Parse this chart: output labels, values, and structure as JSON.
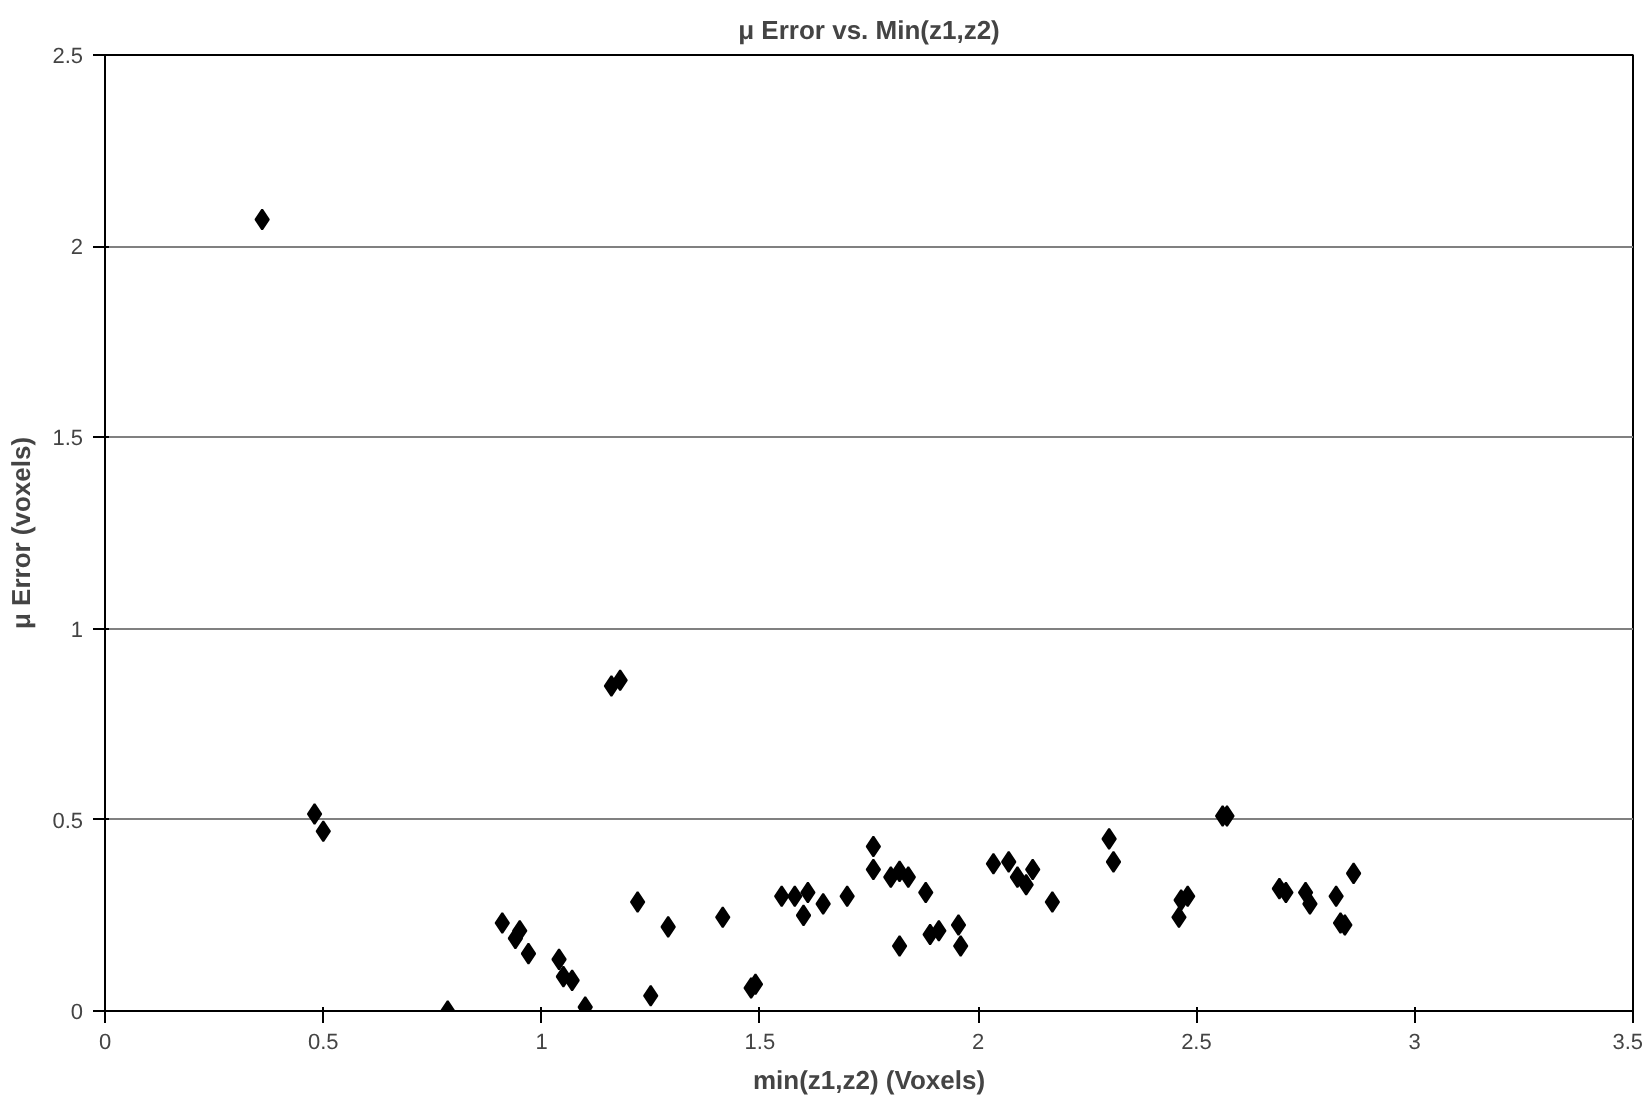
{
  "chart_data": {
    "type": "scatter",
    "title": "μ Error vs. Min(z1,z2)",
    "xlabel": "min(z1,z2) (Voxels)",
    "ylabel": "μ Error (voxels)",
    "xlim": [
      0,
      3.5
    ],
    "ylim": [
      0,
      2.5
    ],
    "xticks": [
      0,
      0.5,
      1,
      1.5,
      2,
      2.5,
      3,
      3.5
    ],
    "yticks": [
      0,
      0.5,
      1,
      1.5,
      2,
      2.5
    ],
    "grid": "y",
    "marker": "diamond",
    "series": [
      {
        "color": "#000000",
        "x": [
          0.36,
          0.48,
          0.5,
          0.785,
          0.91,
          0.94,
          0.95,
          0.97,
          1.04,
          1.05,
          1.07,
          1.1,
          1.16,
          1.18,
          1.22,
          1.29,
          1.25,
          1.415,
          1.48,
          1.49,
          1.55,
          1.58,
          1.61,
          1.6,
          1.645,
          1.7,
          1.76,
          1.76,
          1.8,
          1.82,
          1.84,
          1.82,
          1.88,
          1.89,
          1.91,
          1.955,
          1.96,
          2.035,
          2.07,
          2.09,
          2.11,
          2.125,
          2.17,
          2.3,
          2.31,
          2.465,
          2.46,
          2.48,
          2.56,
          2.57,
          2.69,
          2.705,
          2.75,
          2.76,
          2.82,
          2.83,
          2.84,
          2.86
        ],
        "values": [
          2.07,
          0.515,
          0.47,
          0.0,
          0.23,
          0.19,
          0.21,
          0.15,
          0.135,
          0.09,
          0.08,
          0.01,
          0.85,
          0.865,
          0.285,
          0.22,
          0.04,
          0.245,
          0.06,
          0.07,
          0.3,
          0.3,
          0.31,
          0.25,
          0.28,
          0.3,
          0.43,
          0.37,
          0.35,
          0.365,
          0.35,
          0.17,
          0.31,
          0.2,
          0.21,
          0.225,
          0.17,
          0.385,
          0.39,
          0.35,
          0.33,
          0.37,
          0.285,
          0.45,
          0.39,
          0.29,
          0.245,
          0.3,
          0.51,
          0.51,
          0.32,
          0.31,
          0.31,
          0.28,
          0.3,
          0.23,
          0.225,
          0.36
        ]
      }
    ]
  }
}
